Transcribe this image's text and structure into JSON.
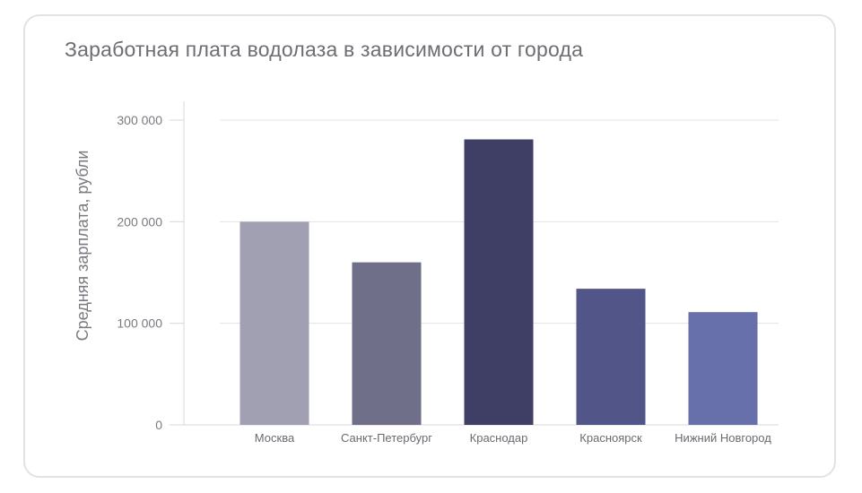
{
  "chart_data": {
    "type": "bar",
    "title": "Заработная плата водолаза в зависимости от города",
    "xlabel": "",
    "ylabel": "Средняя зарплата, рубли",
    "categories": [
      "Москва",
      "Санкт-Петербург",
      "Краснодар",
      "Красноярск",
      "Нижний Новгород"
    ],
    "values": [
      200000,
      160000,
      281000,
      134000,
      111000
    ],
    "ylim": [
      0,
      300000
    ],
    "yticks": [
      0,
      100000,
      200000,
      300000
    ],
    "ytick_labels": [
      "0",
      "100 000",
      "200 000",
      "300 000"
    ],
    "grid": true,
    "legend": "none",
    "colors": [
      "#a1a0b3",
      "#6f6f8a",
      "#3f3e64",
      "#525587",
      "#6770aa"
    ]
  }
}
